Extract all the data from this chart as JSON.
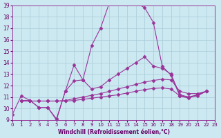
{
  "xlabel": "Windchill (Refroidissement éolien,°C)",
  "bg_color": "#cce8f0",
  "grid_color": "#a8ccd8",
  "line_color": "#993399",
  "xlim": [
    0,
    23
  ],
  "ylim": [
    9,
    19
  ],
  "yticks": [
    9,
    10,
    11,
    12,
    13,
    14,
    15,
    16,
    17,
    18,
    19
  ],
  "xticks": [
    0,
    1,
    2,
    3,
    4,
    5,
    6,
    7,
    8,
    9,
    10,
    11,
    12,
    13,
    14,
    15,
    16,
    17,
    18,
    19,
    20,
    21,
    22,
    23
  ],
  "line1_x": [
    0,
    1,
    2,
    3,
    4,
    5,
    6,
    7,
    8,
    9,
    10,
    11,
    12,
    13,
    14,
    15,
    16,
    17,
    18,
    19,
    20,
    21,
    22
  ],
  "line1_y": [
    9.5,
    11.1,
    10.7,
    10.1,
    10.1,
    9.0,
    11.5,
    13.8,
    12.5,
    15.5,
    17.0,
    19.2,
    19.5,
    19.1,
    19.2,
    18.8,
    17.5,
    13.7,
    12.9,
    11.1,
    10.9,
    11.2,
    11.5
  ],
  "line2_x": [
    1,
    2,
    3,
    4,
    5,
    6,
    7,
    8,
    9,
    10,
    11,
    12,
    13,
    14,
    15,
    16,
    17,
    18,
    19,
    20,
    21,
    22
  ],
  "line2_y": [
    10.7,
    10.7,
    10.1,
    10.1,
    9.1,
    11.5,
    12.4,
    12.5,
    11.7,
    11.9,
    12.5,
    13.0,
    13.5,
    14.0,
    14.5,
    13.7,
    13.5,
    13.0,
    11.2,
    11.0,
    11.2,
    11.5
  ],
  "line3_x": [
    1,
    2,
    3,
    4,
    5,
    6,
    7,
    8,
    9,
    10,
    11,
    12,
    13,
    14,
    15,
    16,
    17,
    18,
    19,
    20,
    21,
    22
  ],
  "line3_y": [
    10.7,
    10.65,
    10.65,
    10.65,
    10.65,
    10.7,
    10.85,
    11.0,
    11.15,
    11.3,
    11.5,
    11.7,
    11.9,
    12.1,
    12.3,
    12.45,
    12.55,
    12.5,
    11.5,
    11.3,
    11.3,
    11.5
  ],
  "line4_x": [
    1,
    2,
    3,
    4,
    5,
    6,
    7,
    8,
    9,
    10,
    11,
    12,
    13,
    14,
    15,
    16,
    17,
    18,
    19,
    20,
    21,
    22
  ],
  "line4_y": [
    10.65,
    10.65,
    10.65,
    10.65,
    10.65,
    10.65,
    10.7,
    10.8,
    10.9,
    11.0,
    11.1,
    11.2,
    11.35,
    11.5,
    11.65,
    11.75,
    11.8,
    11.7,
    11.1,
    11.0,
    11.1,
    11.5
  ]
}
